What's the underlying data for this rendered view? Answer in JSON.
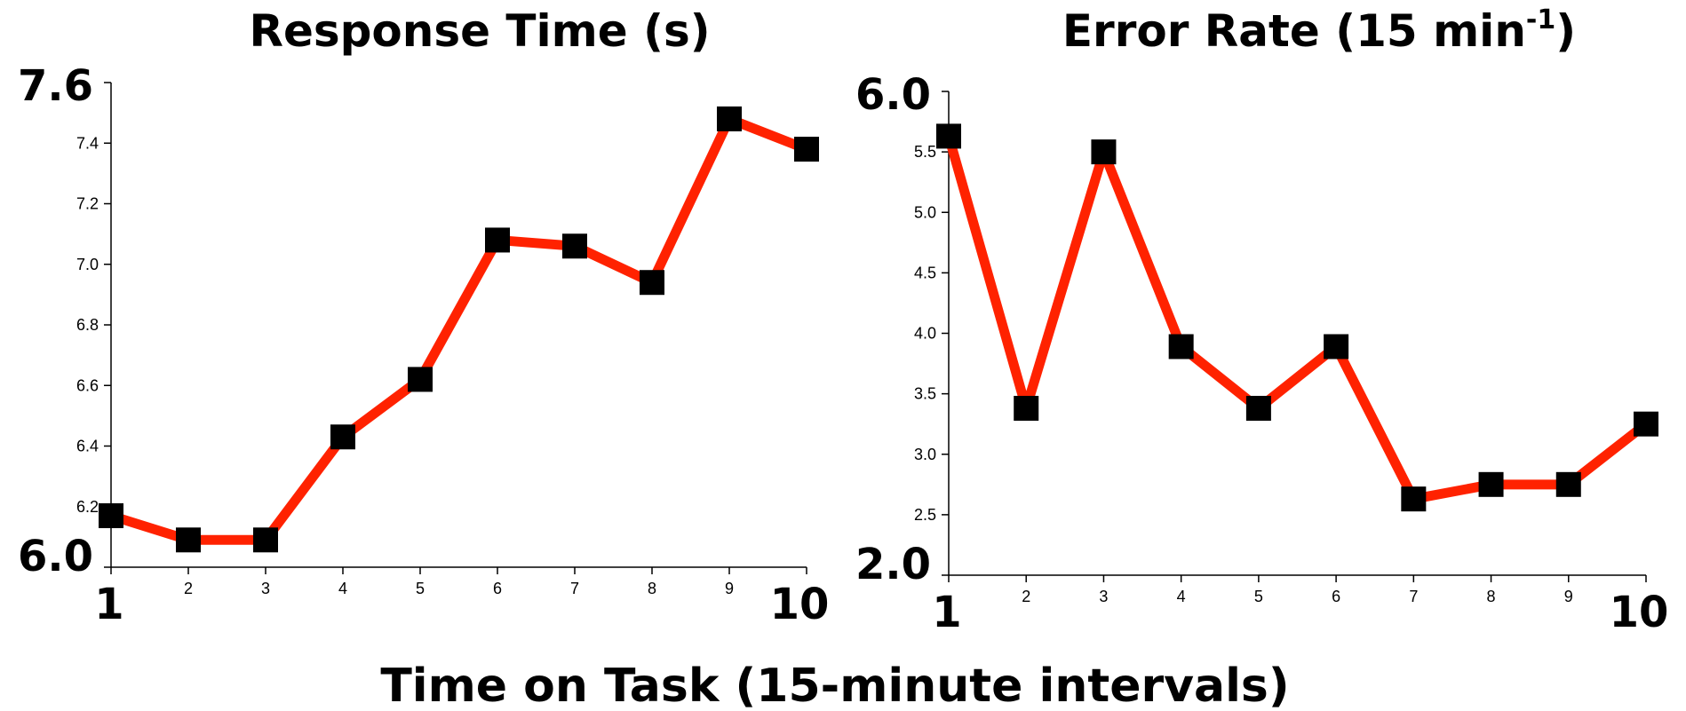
{
  "x_label": "Time on Task (15-minute intervals)",
  "colors": {
    "line": "#ff2200",
    "marker": "#000000",
    "axis": "#000000",
    "background": "#ffffff"
  },
  "chart_data": [
    {
      "type": "line",
      "title": "Response Time (s)",
      "title_superscript": "",
      "title_suffix": "",
      "x": [
        1,
        2,
        3,
        4,
        5,
        6,
        7,
        8,
        9,
        10
      ],
      "xlim": [
        1,
        10
      ],
      "x_ticks": [
        "1",
        "2",
        "3",
        "4",
        "5",
        "6",
        "7",
        "8",
        "9",
        "10"
      ],
      "ylim": [
        6.0,
        7.6
      ],
      "y_ticks": [
        "6.0",
        "6.2",
        "6.4",
        "6.6",
        "6.8",
        "7.0",
        "7.2",
        "7.4",
        "7.6"
      ],
      "series": [
        {
          "values": [
            6.17,
            6.09,
            6.09,
            6.43,
            6.62,
            7.08,
            7.06,
            6.94,
            7.48,
            7.38
          ]
        }
      ],
      "grid": false,
      "marker": "square"
    },
    {
      "type": "line",
      "title": "Error Rate (15 min",
      "title_superscript": "-1",
      "title_suffix": ")",
      "x": [
        1,
        2,
        3,
        4,
        5,
        6,
        7,
        8,
        9,
        10
      ],
      "xlim": [
        1,
        10
      ],
      "x_ticks": [
        "1",
        "2",
        "3",
        "4",
        "5",
        "6",
        "7",
        "8",
        "9",
        "10"
      ],
      "ylim": [
        2.0,
        6.0
      ],
      "y_ticks": [
        "2.0",
        "2.5",
        "3.0",
        "3.5",
        "4.0",
        "4.5",
        "5.0",
        "5.5",
        "6.0"
      ],
      "series": [
        {
          "values": [
            5.63,
            3.38,
            5.5,
            3.89,
            3.38,
            3.89,
            2.63,
            2.75,
            2.75,
            3.25
          ]
        }
      ],
      "grid": false,
      "marker": "square"
    }
  ]
}
